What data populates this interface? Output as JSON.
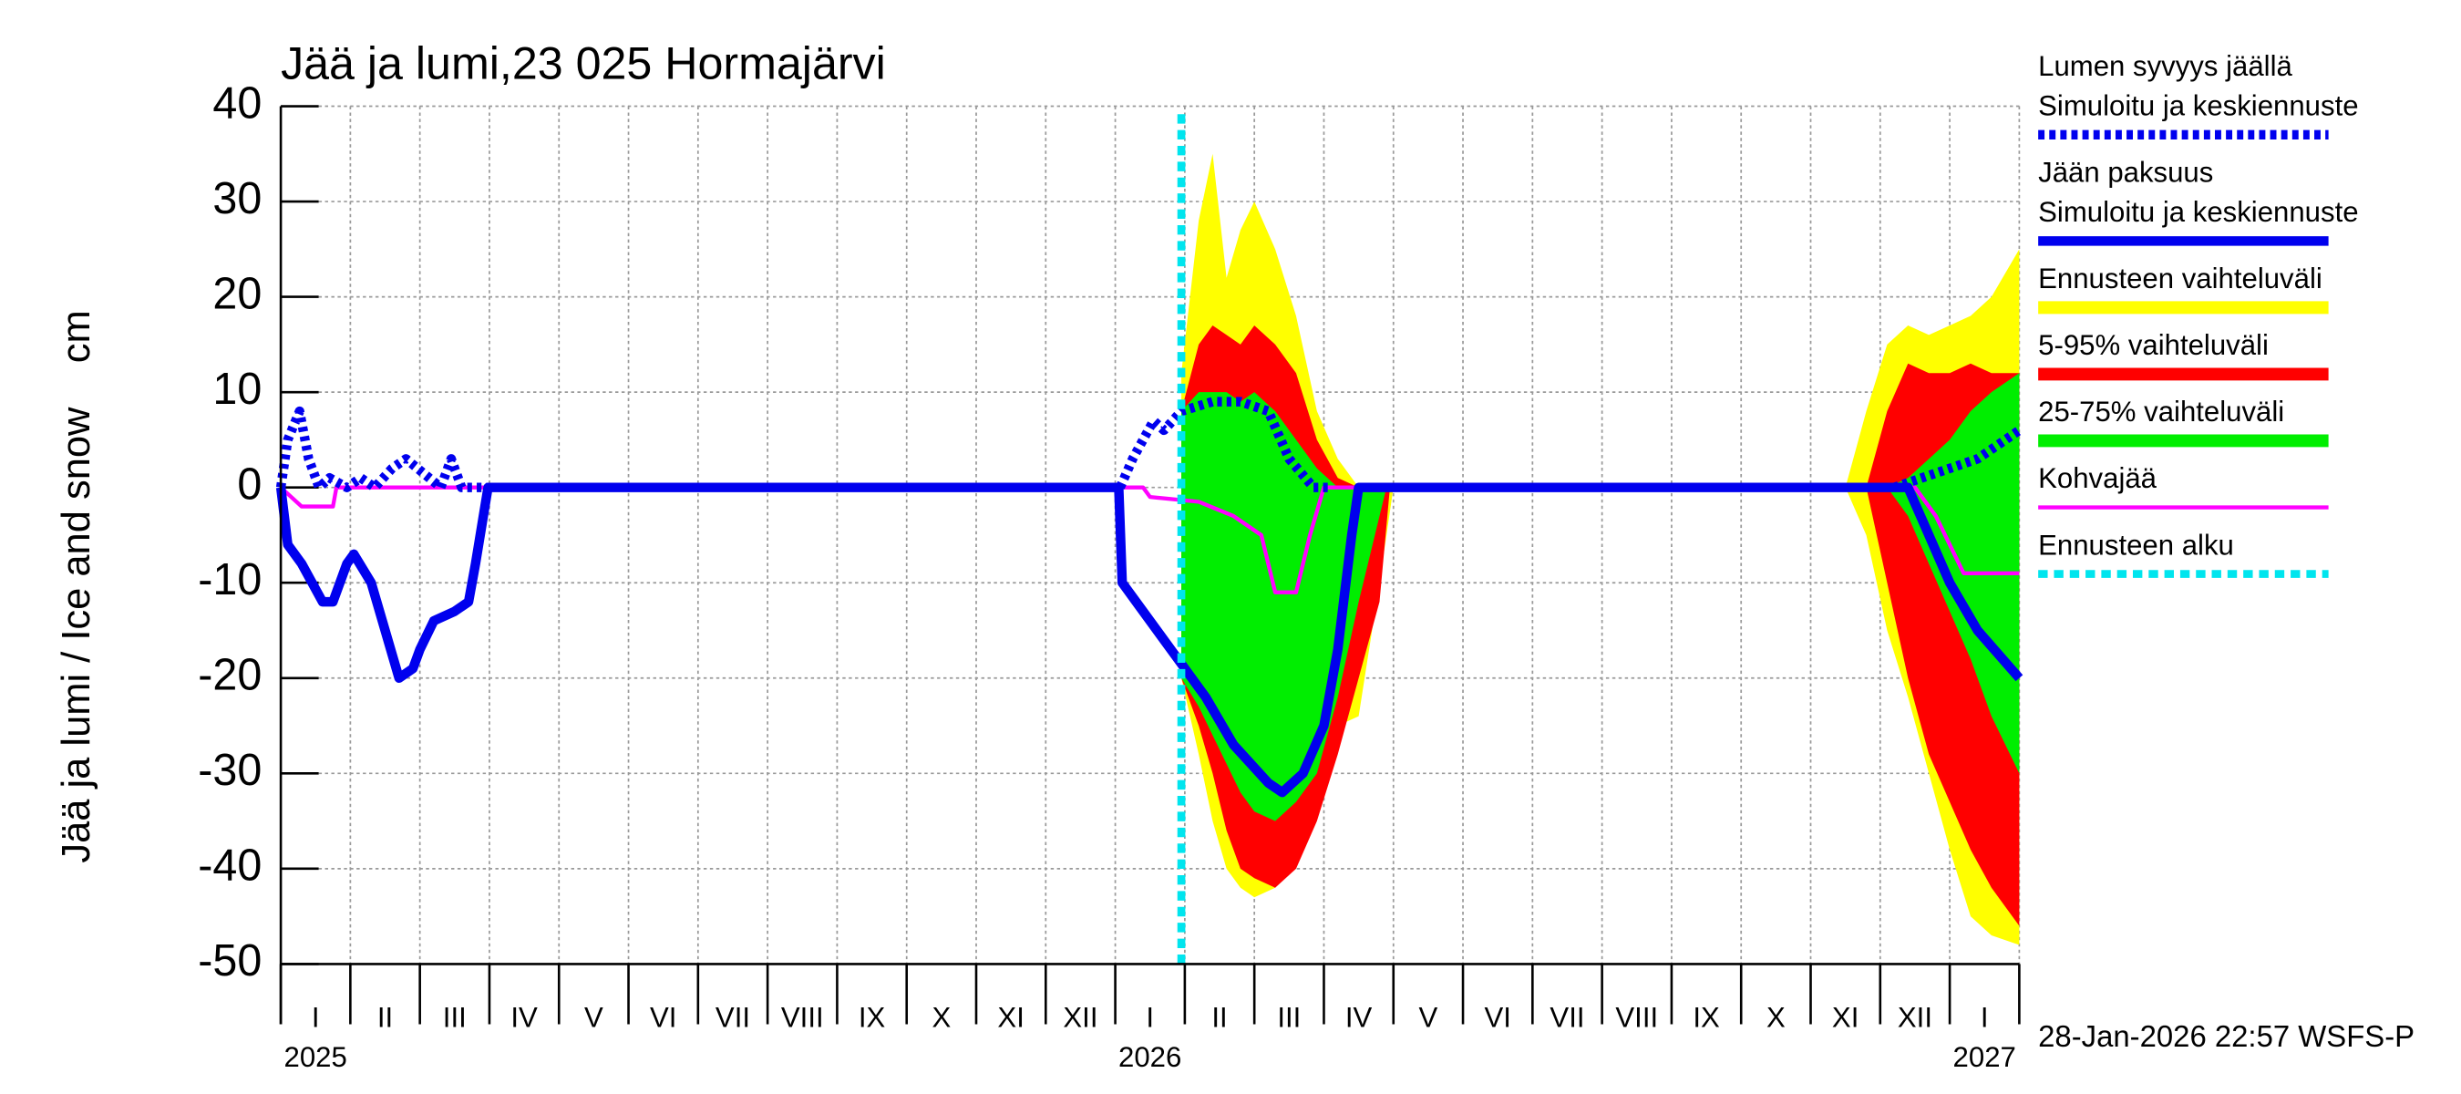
{
  "chart_data": {
    "type": "line",
    "title": "Jää ja lumi,23 025 Hormajärvi",
    "y_label": "Jää ja lumi / Ice and snow    cm",
    "footer": "28-Jan-2026 22:57 WSFS-P",
    "xlim": [
      0,
      25
    ],
    "ylim": [
      -50,
      40
    ],
    "yticks": [
      40,
      30,
      20,
      10,
      0,
      -10,
      -20,
      -30,
      -40,
      -50
    ],
    "grid": true,
    "months": [
      "I",
      "II",
      "III",
      "IV",
      "V",
      "VI",
      "VII",
      "VIII",
      "IX",
      "X",
      "XI",
      "XII",
      "I",
      "II",
      "III",
      "IV",
      "V",
      "VI",
      "VII",
      "VIII",
      "IX",
      "X",
      "XI",
      "XII",
      "I"
    ],
    "years": [
      {
        "x": 0,
        "label": "2025"
      },
      {
        "x": 12,
        "label": "2026"
      },
      {
        "x": 24,
        "label": "2027"
      }
    ],
    "legend": "right",
    "series": [
      {
        "name": [
          "Lumen syvyys jäällä",
          "Simuloitu ja keskiennuste"
        ],
        "color": "#0000ee",
        "style": "dotted",
        "x": [
          0,
          0.1,
          0.27,
          0.4,
          0.55,
          0.7,
          0.95,
          1.15,
          1.35,
          1.6,
          1.8,
          2.3,
          2.45,
          2.6,
          2.97,
          3.0,
          12.07,
          12.25,
          12.4,
          12.55,
          12.7,
          12.95,
          13.4,
          13.8,
          14.2,
          14.5,
          14.85,
          15.1,
          15.2,
          23.2,
          23.6,
          24.0,
          24.4,
          24.8,
          25
        ],
        "values": [
          0,
          5,
          8,
          3,
          0,
          1,
          0,
          1,
          0,
          2,
          3,
          0,
          3,
          0,
          0,
          null,
          0,
          3,
          5,
          7,
          6,
          8,
          9,
          9,
          8,
          3,
          0,
          0,
          null,
          0,
          1,
          2,
          3,
          5,
          6
        ]
      },
      {
        "name": [
          "Jään paksuus",
          "Simuloitu ja keskiennuste"
        ],
        "color": "#0000ee",
        "style": "solid",
        "x": [
          0,
          0.1,
          0.3,
          0.6,
          0.75,
          0.95,
          1.05,
          1.3,
          1.5,
          1.7,
          1.9,
          2.0,
          2.2,
          2.5,
          2.7,
          2.8,
          2.98,
          12.05,
          12.1,
          12.3,
          12.6,
          13.0,
          13.3,
          13.7,
          14.2,
          14.4,
          14.7,
          15.0,
          15.2,
          15.4,
          15.5,
          23.4,
          23.7,
          24.0,
          24.4,
          25.0
        ],
        "values": [
          0,
          -6,
          -8,
          -12,
          -12,
          -8,
          -7,
          -10,
          -15,
          -20,
          -19,
          -17,
          -14,
          -13,
          -12,
          -8,
          0,
          0,
          -10,
          -12,
          -15,
          -19,
          -22,
          -27,
          -31,
          -32,
          -30,
          -25,
          -17,
          -5,
          0,
          0,
          -5,
          -10,
          -15,
          -20
        ]
      },
      {
        "name": [
          "Ennusteen vaihteluväli"
        ],
        "color": "#ffff00",
        "style": "band",
        "bands": [
          {
            "x": [
              12.95,
              13.2,
              13.4,
              13.6,
              13.8,
              14.0,
              14.3,
              14.6,
              14.9,
              15.2,
              15.5,
              15.8,
              16.0
            ],
            "high": [
              12,
              28,
              35,
              22,
              27,
              30,
              25,
              18,
              8,
              3,
              0,
              0,
              0
            ],
            "low": [
              -20,
              -28,
              -35,
              -40,
              -42,
              -43,
              -42,
              -38,
              -30,
              -25,
              -24,
              -10,
              0
            ]
          },
          {
            "x": [
              22.5,
              22.8,
              23.1,
              23.4,
              23.7,
              24.0,
              24.3,
              24.6,
              25.0
            ],
            "high": [
              0,
              8,
              15,
              17,
              16,
              17,
              18,
              20,
              25
            ],
            "low": [
              0,
              -5,
              -15,
              -22,
              -30,
              -38,
              -45,
              -47,
              -48
            ]
          }
        ]
      },
      {
        "name": [
          "5-95% vaihteluväli"
        ],
        "color": "#ff0000",
        "style": "band",
        "bands": [
          {
            "x": [
              12.95,
              13.2,
              13.4,
              13.6,
              13.8,
              14.0,
              14.3,
              14.6,
              14.9,
              15.2,
              15.5,
              15.8,
              15.95
            ],
            "high": [
              8,
              15,
              17,
              16,
              15,
              17,
              15,
              12,
              5,
              1,
              0,
              0,
              0
            ],
            "low": [
              -20,
              -25,
              -30,
              -36,
              -40,
              -41,
              -42,
              -40,
              -35,
              -28,
              -20,
              -12,
              0
            ]
          },
          {
            "x": [
              22.5,
              22.8,
              23.1,
              23.4,
              23.7,
              24.0,
              24.3,
              24.6,
              25.0
            ],
            "high": [
              0,
              0,
              8,
              13,
              12,
              12,
              13,
              12,
              12
            ],
            "low": [
              0,
              0,
              -10,
              -20,
              -28,
              -33,
              -38,
              -42,
              -46
            ]
          }
        ]
      },
      {
        "name": [
          "25-75% vaihteluväli"
        ],
        "color": "#00ee00",
        "style": "band",
        "bands": [
          {
            "x": [
              12.95,
              13.2,
              13.4,
              13.6,
              13.8,
              14.0,
              14.3,
              14.6,
              14.9,
              15.2,
              15.5,
              15.8,
              15.9
            ],
            "high": [
              8,
              10,
              10,
              10,
              9,
              10,
              8,
              5,
              2,
              0,
              0,
              0,
              0
            ],
            "low": [
              -20,
              -23,
              -26,
              -29,
              -32,
              -34,
              -35,
              -33,
              -30,
              -22,
              -12,
              -3,
              0
            ]
          },
          {
            "x": [
              22.5,
              22.8,
              23.1,
              23.4,
              23.7,
              24.0,
              24.3,
              24.6,
              25.0
            ],
            "high": [
              0,
              0,
              0,
              1,
              3,
              5,
              8,
              10,
              12
            ],
            "low": [
              0,
              0,
              0,
              -3,
              -8,
              -13,
              -18,
              -24,
              -30
            ]
          }
        ]
      },
      {
        "name": [
          "Kohvajää"
        ],
        "color": "#ff00ff",
        "style": "thin",
        "x": [
          0,
          0.3,
          0.75,
          0.8,
          12.4,
          12.5,
          13.2,
          13.7,
          14.1,
          14.3,
          14.6,
          14.8,
          15.0,
          23.5,
          23.8,
          24.2,
          25
        ],
        "values": [
          0,
          -2,
          -2,
          0,
          0,
          -1,
          -1.5,
          -3,
          -5,
          -11,
          -11,
          -5,
          0,
          0,
          -3,
          -9,
          -9
        ]
      },
      {
        "name": [
          "Ennusteen alku"
        ],
        "color": "#00e5ee",
        "style": "vline",
        "x": 12.95
      }
    ]
  }
}
